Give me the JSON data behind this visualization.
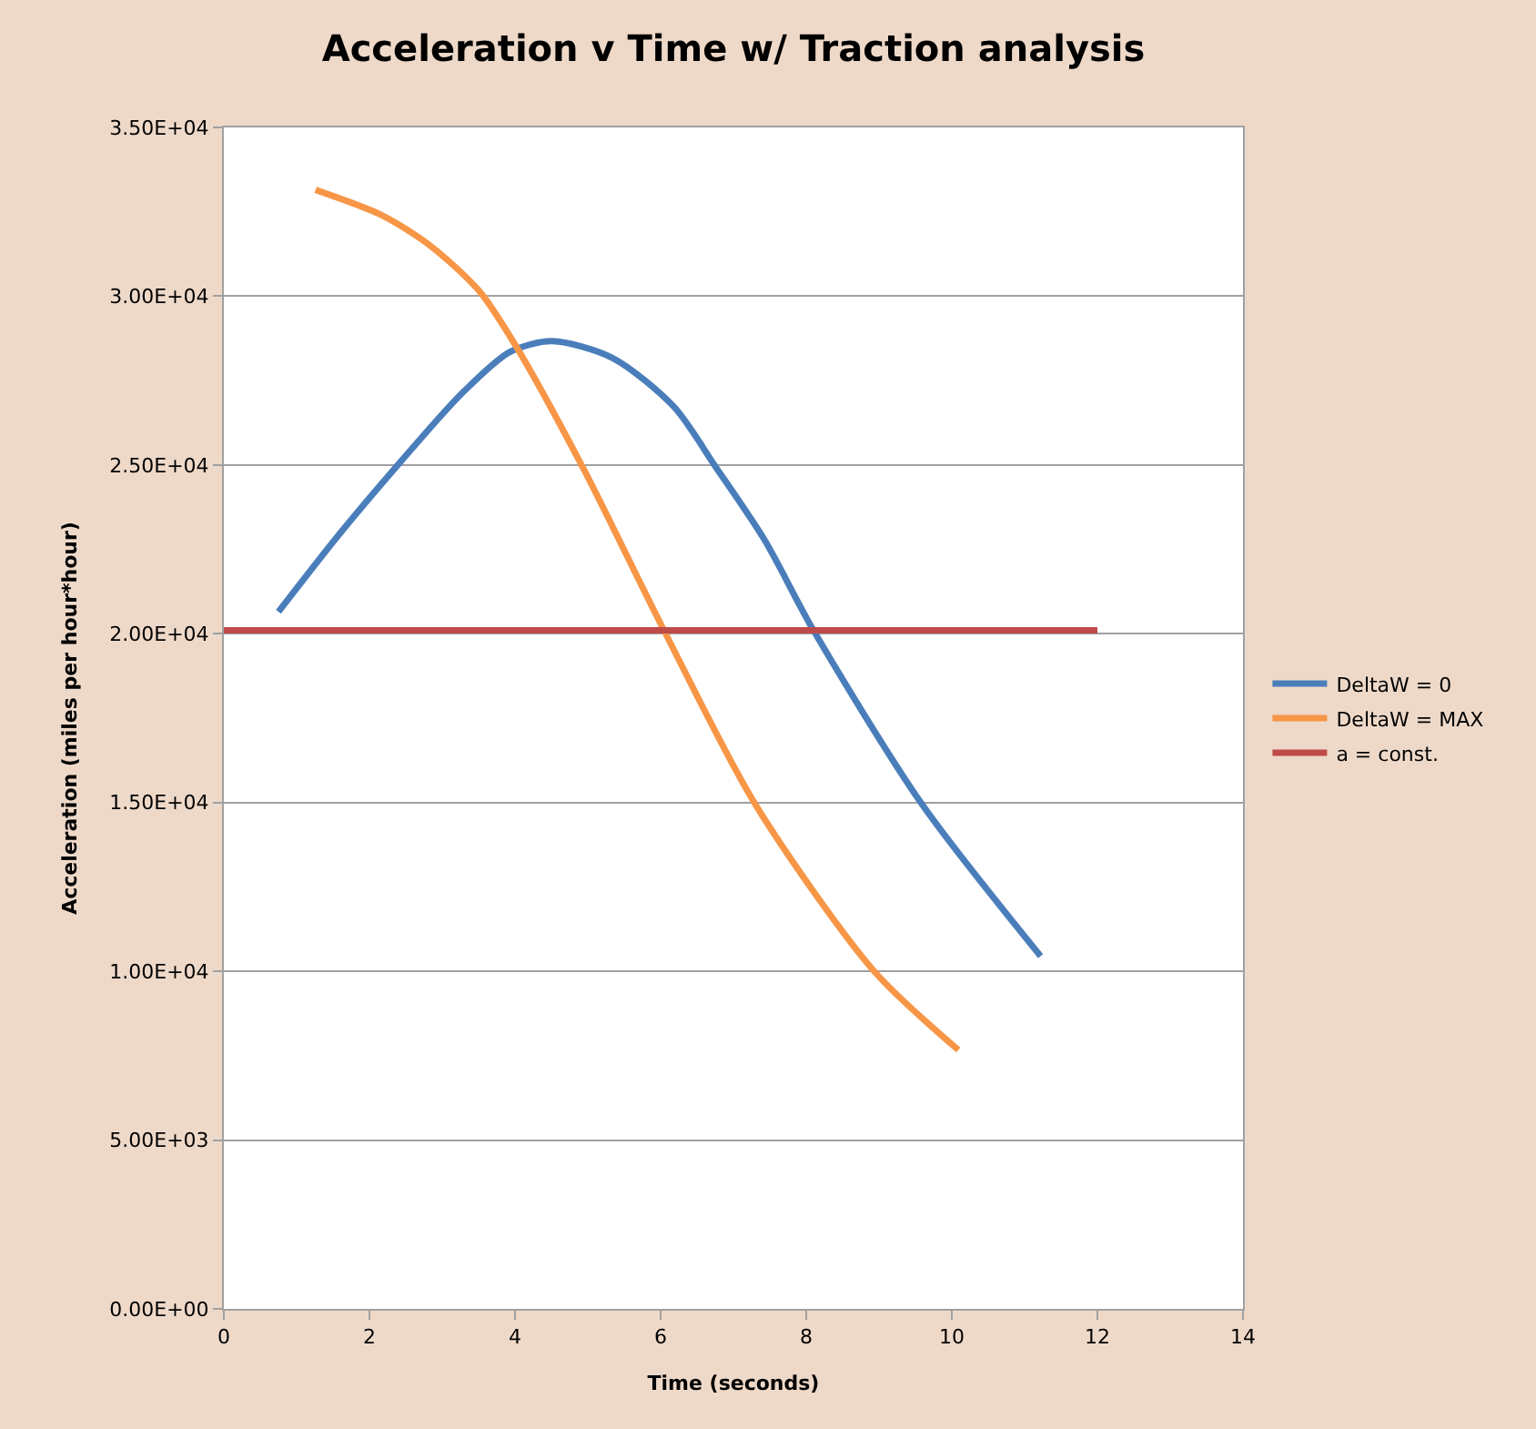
{
  "chart_data": {
    "type": "line",
    "title": "Acceleration v Time w/ Traction analysis",
    "xlabel": "Time (seconds)",
    "ylabel": "Acceleration (miles per hour*hour)",
    "xlim": [
      0,
      14
    ],
    "xticks": [
      0,
      2,
      4,
      6,
      8,
      10,
      12,
      14
    ],
    "ylim": [
      0,
      35000
    ],
    "yticks": [
      {
        "value": 0,
        "label": "0.00E+00"
      },
      {
        "value": 5000,
        "label": "5.00E+03"
      },
      {
        "value": 10000,
        "label": "1.00E+04"
      },
      {
        "value": 15000,
        "label": "1.50E+04"
      },
      {
        "value": 20000,
        "label": "2.00E+04"
      },
      {
        "value": 25000,
        "label": "2.50E+04"
      },
      {
        "value": 30000,
        "label": "3.00E+04"
      },
      {
        "value": 35000,
        "label": "3.50E+04"
      }
    ],
    "grid": "y",
    "legend": "right",
    "marker": "none",
    "line_style": "solid",
    "series": [
      {
        "name": "DeltaW = 0",
        "color": "#4a7ebb",
        "x": [
          0.75,
          1.59,
          2.43,
          3.26,
          3.93,
          4.51,
          5.34,
          6.18,
          6.76,
          7.43,
          8.1,
          9.59,
          11.22
        ],
        "values": [
          20650,
          22960,
          25100,
          27100,
          28350,
          28670,
          28170,
          26730,
          24930,
          22770,
          20100,
          14950,
          10450
        ]
      },
      {
        "name": "DeltaW = MAX",
        "color": "#f79646",
        "x": [
          1.26,
          2.18,
          2.84,
          3.51,
          4.01,
          4.93,
          6.03,
          7.3,
          8.93,
          10.09
        ],
        "values": [
          33150,
          32390,
          31490,
          30150,
          28530,
          24930,
          20170,
          14950,
          10010,
          7670
        ]
      },
      {
        "name": "a = const.",
        "color": "#be4b48",
        "x": [
          0,
          12
        ],
        "values": [
          20100,
          20100
        ]
      }
    ]
  }
}
